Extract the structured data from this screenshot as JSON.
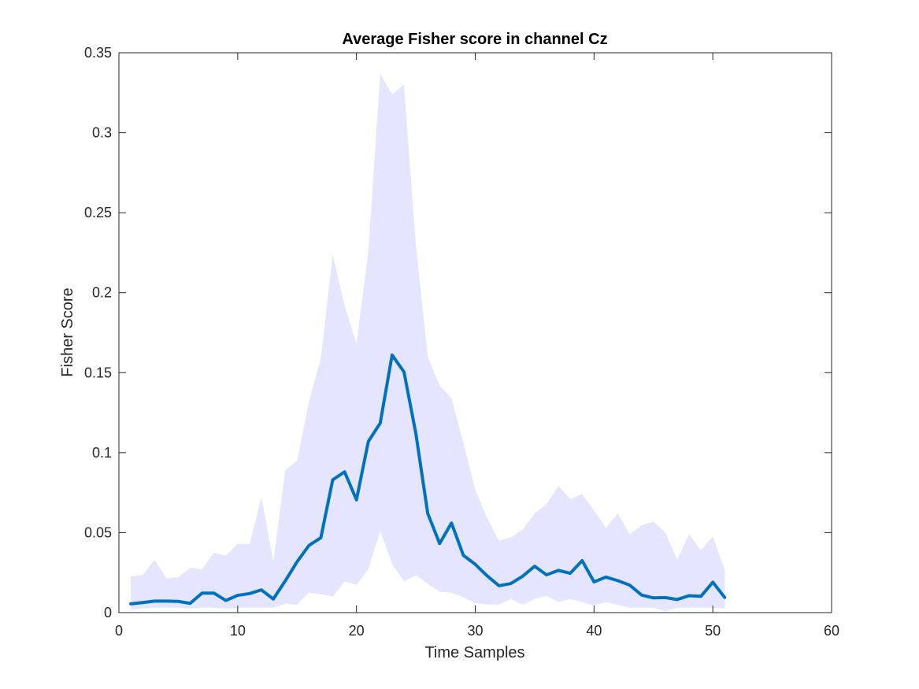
{
  "chart_data": {
    "type": "area",
    "title": "Average Fisher score in channel Cz",
    "xlabel": "Time Samples",
    "ylabel": "Fisher Score",
    "xlim": [
      0,
      60
    ],
    "ylim": [
      0,
      0.35
    ],
    "x_ticks": [
      0,
      10,
      20,
      30,
      40,
      50,
      60
    ],
    "x_tick_labels": [
      "0",
      "10",
      "20",
      "30",
      "40",
      "50",
      "60"
    ],
    "y_ticks": [
      0,
      0.05,
      0.1,
      0.15,
      0.2,
      0.25,
      0.3,
      0.35
    ],
    "y_tick_labels": [
      "0",
      "0.05",
      "0.1",
      "0.15",
      "0.2",
      "0.25",
      "0.3",
      "0.35"
    ],
    "grid": false,
    "box": true,
    "colors": {
      "mean_line": "#0072BD",
      "band_fill": "#E5E5FF",
      "axes": "#262626"
    },
    "x": [
      1,
      2,
      3,
      4,
      5,
      6,
      7,
      8,
      9,
      10,
      11,
      12,
      13,
      14,
      15,
      16,
      17,
      18,
      19,
      20,
      21,
      22,
      23,
      24,
      25,
      26,
      27,
      28,
      29,
      30,
      31,
      32,
      33,
      34,
      35,
      36,
      37,
      38,
      39,
      40,
      41,
      42,
      43,
      44,
      45,
      46,
      47,
      48,
      49,
      50,
      51
    ],
    "series": [
      {
        "values": [
          0.0055,
          0.0063,
          0.0072,
          0.0072,
          0.007,
          0.0058,
          0.0122,
          0.0122,
          0.0076,
          0.0108,
          0.0119,
          0.0142,
          0.0085,
          0.0198,
          0.0318,
          0.042,
          0.0468,
          0.083,
          0.088,
          0.0705,
          0.107,
          0.1185,
          0.161,
          0.1505,
          0.112,
          0.062,
          0.0432,
          0.056,
          0.0358,
          0.0302,
          0.023,
          0.0168,
          0.0182,
          0.0228,
          0.029,
          0.0236,
          0.0264,
          0.0246,
          0.0325,
          0.0192,
          0.0222,
          0.02,
          0.0172,
          0.011,
          0.0092,
          0.0094,
          0.0082,
          0.0106,
          0.0102,
          0.019,
          0.0095
        ]
      }
    ],
    "band": {
      "upper": [
        0.0225,
        0.0235,
        0.033,
        0.0215,
        0.022,
        0.028,
        0.027,
        0.0375,
        0.0355,
        0.043,
        0.0428,
        0.0725,
        0.0315,
        0.089,
        0.095,
        0.132,
        0.159,
        0.224,
        0.192,
        0.168,
        0.226,
        0.337,
        0.324,
        0.33,
        0.23,
        0.16,
        0.142,
        0.134,
        0.106,
        0.077,
        0.059,
        0.045,
        0.047,
        0.052,
        0.062,
        0.068,
        0.079,
        0.071,
        0.074,
        0.064,
        0.053,
        0.062,
        0.049,
        0.0545,
        0.057,
        0.05,
        0.033,
        0.049,
        0.039,
        0.0475,
        0.027
      ],
      "lower": [
        0.002,
        0.0025,
        0.003,
        0.003,
        0.003,
        0.0025,
        0.003,
        0.003,
        0.0025,
        0.003,
        0.003,
        0.003,
        0.003,
        0.0055,
        0.005,
        0.0125,
        0.0115,
        0.01,
        0.0195,
        0.0175,
        0.027,
        0.051,
        0.0305,
        0.0195,
        0.0235,
        0.018,
        0.013,
        0.0125,
        0.0095,
        0.006,
        0.005,
        0.005,
        0.0085,
        0.005,
        0.0085,
        0.0105,
        0.0065,
        0.0085,
        0.0065,
        0.0045,
        0.0065,
        0.005,
        0.003,
        0.003,
        0.003,
        0.001,
        0.003,
        0.003,
        0.003,
        0.003,
        0.0025
      ]
    }
  }
}
